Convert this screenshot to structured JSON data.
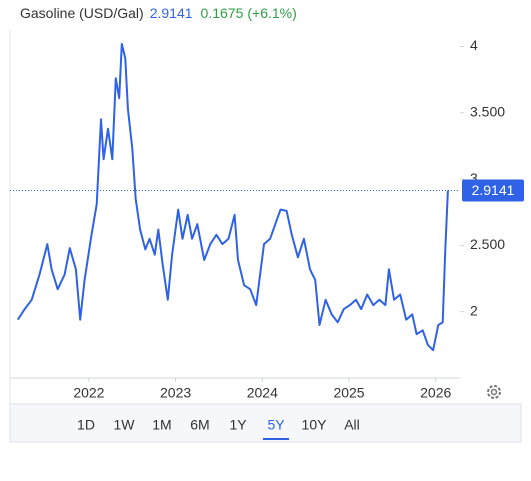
{
  "chart_data": {
    "type": "line",
    "title": "Gasoline (USD/Gal)",
    "last_value": 2.9141,
    "change": 0.1675,
    "change_percent": "(+6.1%)",
    "x": [
      2021.18,
      2021.26,
      2021.34,
      2021.43,
      2021.52,
      2021.57,
      2021.64,
      2021.72,
      2021.78,
      2021.85,
      2021.9,
      2021.95,
      2022.03,
      2022.09,
      2022.14,
      2022.17,
      2022.22,
      2022.27,
      2022.31,
      2022.35,
      2022.38,
      2022.42,
      2022.45,
      2022.5,
      2022.54,
      2022.59,
      2022.65,
      2022.7,
      2022.76,
      2022.8,
      2022.85,
      2022.91,
      2022.96,
      2023.03,
      2023.08,
      2023.14,
      2023.19,
      2023.25,
      2023.33,
      2023.4,
      2023.47,
      2023.54,
      2023.61,
      2023.68,
      2023.72,
      2023.79,
      2023.86,
      2023.93,
      2024.02,
      2024.09,
      2024.15,
      2024.21,
      2024.28,
      2024.34,
      2024.41,
      2024.48,
      2024.55,
      2024.61,
      2024.66,
      2024.73,
      2024.8,
      2024.87,
      2024.94,
      2025.01,
      2025.08,
      2025.14,
      2025.21,
      2025.28,
      2025.35,
      2025.42,
      2025.46,
      2025.52,
      2025.59,
      2025.66,
      2025.73,
      2025.78,
      2025.85,
      2025.91,
      2025.97,
      2026.03,
      2026.08,
      2026.11,
      2026.14
    ],
    "series": [
      {
        "name": "Gasoline",
        "color": "#2f62e6",
        "values": [
          1.94,
          2.02,
          2.09,
          2.28,
          2.51,
          2.32,
          2.17,
          2.28,
          2.48,
          2.32,
          1.94,
          2.24,
          2.58,
          2.81,
          3.45,
          3.15,
          3.38,
          3.15,
          3.76,
          3.61,
          4.02,
          3.91,
          3.53,
          3.23,
          2.85,
          2.62,
          2.47,
          2.55,
          2.43,
          2.62,
          2.36,
          2.09,
          2.43,
          2.77,
          2.55,
          2.73,
          2.55,
          2.66,
          2.39,
          2.51,
          2.58,
          2.51,
          2.55,
          2.73,
          2.39,
          2.2,
          2.17,
          2.05,
          2.51,
          2.55,
          2.66,
          2.77,
          2.76,
          2.58,
          2.41,
          2.55,
          2.32,
          2.24,
          1.9,
          2.09,
          1.98,
          1.92,
          2.02,
          2.05,
          2.09,
          2.02,
          2.13,
          2.05,
          2.09,
          2.05,
          2.32,
          2.09,
          2.13,
          1.94,
          1.98,
          1.83,
          1.86,
          1.75,
          1.71,
          1.9,
          1.92,
          2.47,
          2.9141
        ]
      }
    ],
    "xlim": [
      2021.09,
      2026.28
    ],
    "xticks": [
      2022,
      2023,
      2024,
      2025,
      2026
    ],
    "ylim": [
      1.5,
      4.2
    ],
    "yticks": [
      2,
      {
        "value": 2.5,
        "label": "2.500"
      },
      3,
      {
        "value": 3.5,
        "label": "3.500"
      },
      4
    ],
    "grid": false,
    "ranges": [
      "1D",
      "1W",
      "1M",
      "6M",
      "1Y",
      "5Y",
      "10Y",
      "All"
    ],
    "selected_range": "5Y"
  }
}
